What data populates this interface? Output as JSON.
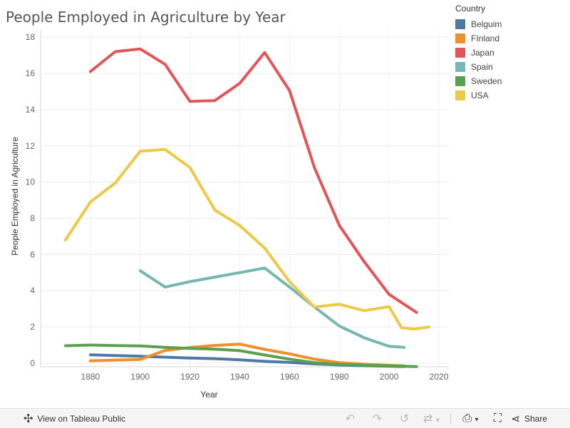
{
  "chart_data": {
    "type": "line",
    "title": "People Employed in Agriculture by Year",
    "xlabel": "Year",
    "ylabel": "People Employed in Agriculture",
    "xlim": [
      1860,
      2024
    ],
    "ylim": [
      -0.2,
      18.4
    ],
    "x_ticks": [
      1880,
      1900,
      1920,
      1940,
      1960,
      1980,
      2000,
      2020
    ],
    "y_ticks": [
      0,
      2,
      4,
      6,
      8,
      10,
      12,
      14,
      16,
      18
    ],
    "legend_title": "Country",
    "legend_position": "top-right",
    "series": [
      {
        "name": "Belguim",
        "color": "#4e79a7",
        "x": [
          1880,
          1900,
          1920,
          1930,
          1940,
          1950,
          1960,
          1970,
          1980,
          1990,
          2000,
          2006
        ],
        "y": [
          0.46,
          0.38,
          0.28,
          0.25,
          0.18,
          0.1,
          0.04,
          -0.04,
          -0.1,
          -0.14,
          -0.17,
          -0.19
        ]
      },
      {
        "name": "FInland",
        "color": "#f28e2b",
        "x": [
          1880,
          1900,
          1910,
          1920,
          1930,
          1940,
          1950,
          1960,
          1970,
          1980,
          1990,
          2000,
          2006
        ],
        "y": [
          0.13,
          0.2,
          0.7,
          0.86,
          0.98,
          1.05,
          0.76,
          0.51,
          0.22,
          0.03,
          -0.06,
          -0.12,
          -0.15
        ]
      },
      {
        "name": "Japan",
        "color": "#e15759",
        "x": [
          1880,
          1890,
          1900,
          1910,
          1920,
          1930,
          1940,
          1950,
          1960,
          1970,
          1980,
          1990,
          2000,
          2011
        ],
        "y": [
          16.1,
          17.2,
          17.35,
          16.5,
          14.45,
          14.5,
          15.45,
          17.15,
          15.05,
          10.8,
          7.6,
          5.6,
          3.8,
          2.8
        ]
      },
      {
        "name": "Spain",
        "color": "#76b7b2",
        "x": [
          1900,
          1910,
          1920,
          1930,
          1940,
          1950,
          1960,
          1970,
          1980,
          1990,
          2000,
          2006
        ],
        "y": [
          5.1,
          4.2,
          4.5,
          4.75,
          5.0,
          5.25,
          4.2,
          3.1,
          2.05,
          1.4,
          0.93,
          0.87
        ]
      },
      {
        "name": "Sweden",
        "color": "#59a14f",
        "x": [
          1870,
          1880,
          1890,
          1900,
          1910,
          1920,
          1930,
          1940,
          1950,
          1960,
          1970,
          1980,
          1990,
          2000,
          2011
        ],
        "y": [
          0.96,
          1.0,
          0.97,
          0.95,
          0.87,
          0.81,
          0.77,
          0.69,
          0.45,
          0.22,
          0.03,
          -0.07,
          -0.12,
          -0.15,
          -0.19
        ]
      },
      {
        "name": "USA",
        "color": "#edc948",
        "x": [
          1870,
          1880,
          1890,
          1900,
          1910,
          1920,
          1930,
          1940,
          1950,
          1960,
          1970,
          1980,
          1990,
          2000,
          2005,
          2010,
          2016
        ],
        "y": [
          6.8,
          8.9,
          9.95,
          11.7,
          11.8,
          10.8,
          8.45,
          7.6,
          6.35,
          4.5,
          3.1,
          3.25,
          2.9,
          3.12,
          1.95,
          1.88,
          2.0
        ]
      }
    ]
  },
  "toolbar": {
    "view_label": "View on Tableau Public",
    "share_label": "Share"
  },
  "icons": {
    "tableau": "tableau-logo-icon",
    "undo": "undo-icon",
    "redo": "redo-icon",
    "revert": "revert-icon",
    "refresh": "refresh-icon",
    "download": "download-icon",
    "fullscreen": "fullscreen-icon",
    "share": "share-icon"
  }
}
